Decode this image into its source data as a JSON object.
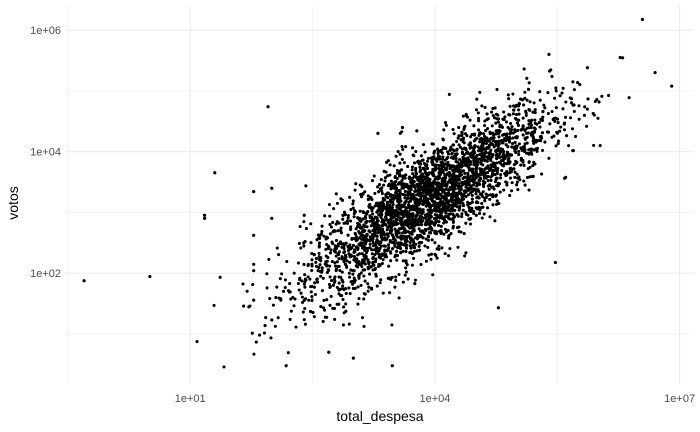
{
  "chart_data": {
    "type": "scatter",
    "title": "",
    "xlabel": "total_despesa",
    "ylabel": "votos",
    "x_scale": "log10",
    "y_scale": "log10",
    "xlim": [
      0.3,
      15000000
    ],
    "ylim": [
      1.5,
      2500000
    ],
    "x_ticks": [
      {
        "value": 10,
        "label": "1e+01"
      },
      {
        "value": 10000,
        "label": "1e+04"
      },
      {
        "value": 10000000,
        "label": "1e+07"
      }
    ],
    "y_ticks": [
      {
        "value": 100,
        "label": "1e+02"
      },
      {
        "value": 10000,
        "label": "1e+04"
      },
      {
        "value": 1000000,
        "label": "1e+06"
      }
    ],
    "grid": true,
    "point_color": "#000000",
    "background": "#ffffff",
    "grid_color": "#ebebeb",
    "cluster": {
      "description_note": "",
      "center_x": 8000,
      "center_y": 1600,
      "spread_x_decades": 0.75,
      "spread_y_decades": 0.85,
      "slope": 0.85,
      "point_count": 3000
    },
    "outliers": [
      {
        "x": 0.5,
        "y": 75
      },
      {
        "x": 3.2,
        "y": 88
      },
      {
        "x": 15,
        "y": 900
      },
      {
        "x": 15,
        "y": 800
      },
      {
        "x": 20,
        "y": 4500
      },
      {
        "x": 90,
        "y": 55000
      },
      {
        "x": 60,
        "y": 2200
      },
      {
        "x": 60,
        "y": 420
      },
      {
        "x": 60,
        "y": 36
      },
      {
        "x": 60,
        "y": 110
      },
      {
        "x": 60,
        "y": 140
      },
      {
        "x": 100,
        "y": 2500
      },
      {
        "x": 100,
        "y": 800
      },
      {
        "x": 100,
        "y": 17
      },
      {
        "x": 150,
        "y": 3
      },
      {
        "x": 250,
        "y": 900
      },
      {
        "x": 300,
        "y": 60
      },
      {
        "x": 500,
        "y": 5
      },
      {
        "x": 1000,
        "y": 4
      },
      {
        "x": 3000,
        "y": 3
      },
      {
        "x": 2000,
        "y": 20000
      },
      {
        "x": 4000,
        "y": 25000
      },
      {
        "x": 6000,
        "y": 22000
      },
      {
        "x": 60000,
        "y": 27
      },
      {
        "x": 300000,
        "y": 150
      },
      {
        "x": 250000,
        "y": 400000
      },
      {
        "x": 2000000,
        "y": 350000
      },
      {
        "x": 5000000,
        "y": 200000
      },
      {
        "x": 8000000,
        "y": 120000
      },
      {
        "x": 3500000,
        "y": 1500000
      }
    ]
  }
}
